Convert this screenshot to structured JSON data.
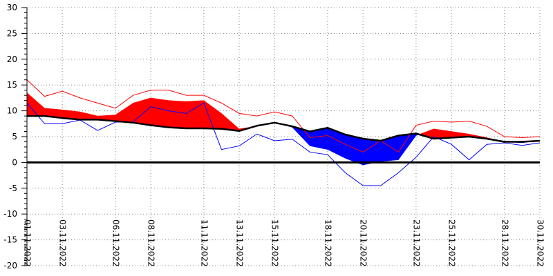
{
  "chart_data": {
    "type": "area",
    "title": "",
    "xlabel": "",
    "ylabel": "",
    "ylim": [
      -20,
      30
    ],
    "y_ticks": [
      30,
      25,
      20,
      15,
      10,
      5,
      0,
      -5,
      -10,
      -15,
      -20
    ],
    "y_tick_labels": [
      "30",
      "25",
      "20",
      "15",
      "10",
      "5",
      "0",
      "-5",
      "-10",
      "-15",
      "-20"
    ],
    "x_range_days": [
      1,
      30
    ],
    "x_ticks": [
      {
        "day": 1,
        "label": "01.11.2022"
      },
      {
        "day": 3,
        "label": "03.11.2022"
      },
      {
        "day": 6,
        "label": "06.11.2022"
      },
      {
        "day": 8,
        "label": "08.11.2022"
      },
      {
        "day": 11,
        "label": "11.11.2022"
      },
      {
        "day": 13,
        "label": "13.11.2022"
      },
      {
        "day": 15,
        "label": "15.11.2022"
      },
      {
        "day": 18,
        "label": "18.11.2022"
      },
      {
        "day": 20,
        "label": "20.11.2022"
      },
      {
        "day": 23,
        "label": "23.11.2022"
      },
      {
        "day": 25,
        "label": "25.11.2022"
      },
      {
        "day": 28,
        "label": "28.11.2022"
      },
      {
        "day": 30,
        "label": "30.11.2022"
      }
    ],
    "grid": true,
    "legend": "none",
    "colors": {
      "above": "#ff0000",
      "below": "#0000ff",
      "baseline": "#000000",
      "max_line": "#ff0000",
      "min_line": "#0000ff",
      "zero_line": "#000000"
    },
    "series": [
      {
        "role": "actual",
        "x": [
          1,
          2,
          3,
          4,
          5,
          6,
          7,
          8,
          9,
          10,
          11,
          12,
          13,
          14,
          15,
          16,
          17,
          18,
          19,
          20,
          21,
          22,
          23,
          24,
          25,
          26,
          27,
          28,
          29,
          30
        ],
        "values": [
          13.5,
          10.5,
          10.2,
          9.8,
          9.0,
          9.2,
          11.5,
          12.5,
          12.0,
          11.8,
          12.0,
          9.5,
          6.5,
          7.0,
          7.8,
          6.8,
          3.2,
          2.5,
          0.8,
          -0.5,
          0.2,
          0.5,
          5.2,
          6.5,
          6.0,
          5.5,
          4.8,
          4.0,
          3.8,
          4.3
        ]
      },
      {
        "role": "normal",
        "x": [
          1,
          2,
          3,
          4,
          5,
          6,
          7,
          8,
          9,
          10,
          11,
          12,
          13,
          14,
          15,
          16,
          17,
          18,
          19,
          20,
          21,
          22,
          23,
          24,
          25,
          26,
          27,
          28,
          29,
          30
        ],
        "values": [
          9.0,
          9.0,
          8.6,
          8.3,
          8.3,
          8.0,
          7.7,
          7.2,
          6.8,
          6.6,
          6.6,
          6.5,
          6.1,
          7.1,
          7.7,
          7.0,
          6.0,
          6.7,
          5.4,
          4.6,
          4.2,
          5.2,
          5.6,
          4.6,
          4.8,
          5.0,
          4.6,
          4.0,
          4.0,
          4.2
        ]
      },
      {
        "role": "max",
        "x": [
          1,
          2,
          3,
          4,
          5,
          6,
          7,
          8,
          9,
          10,
          11,
          12,
          13,
          14,
          15,
          16,
          17,
          18,
          19,
          20,
          21,
          22,
          23,
          24,
          25,
          26,
          27,
          28,
          29,
          30
        ],
        "values": [
          16.0,
          12.8,
          13.8,
          12.5,
          11.5,
          10.5,
          13.0,
          14.0,
          14.0,
          13.0,
          13.0,
          11.5,
          9.5,
          9.0,
          9.8,
          9.0,
          4.8,
          5.2,
          3.5,
          2.0,
          4.2,
          2.0,
          7.2,
          8.0,
          7.8,
          8.0,
          7.0,
          5.0,
          4.8,
          5.0
        ]
      },
      {
        "role": "min",
        "x": [
          1,
          2,
          3,
          4,
          5,
          6,
          7,
          8,
          9,
          10,
          11,
          12,
          13,
          14,
          15,
          16,
          17,
          18,
          19,
          20,
          21,
          22,
          23,
          24,
          25,
          26,
          27,
          28,
          29,
          30
        ],
        "values": [
          11.5,
          7.5,
          7.5,
          8.2,
          6.2,
          7.8,
          7.8,
          10.8,
          10.0,
          9.5,
          11.5,
          2.5,
          3.2,
          5.5,
          4.2,
          4.5,
          2.0,
          1.5,
          -2.0,
          -4.5,
          -4.5,
          -2.0,
          1.0,
          5.0,
          3.5,
          0.5,
          3.5,
          3.8,
          3.3,
          3.8
        ]
      }
    ]
  }
}
